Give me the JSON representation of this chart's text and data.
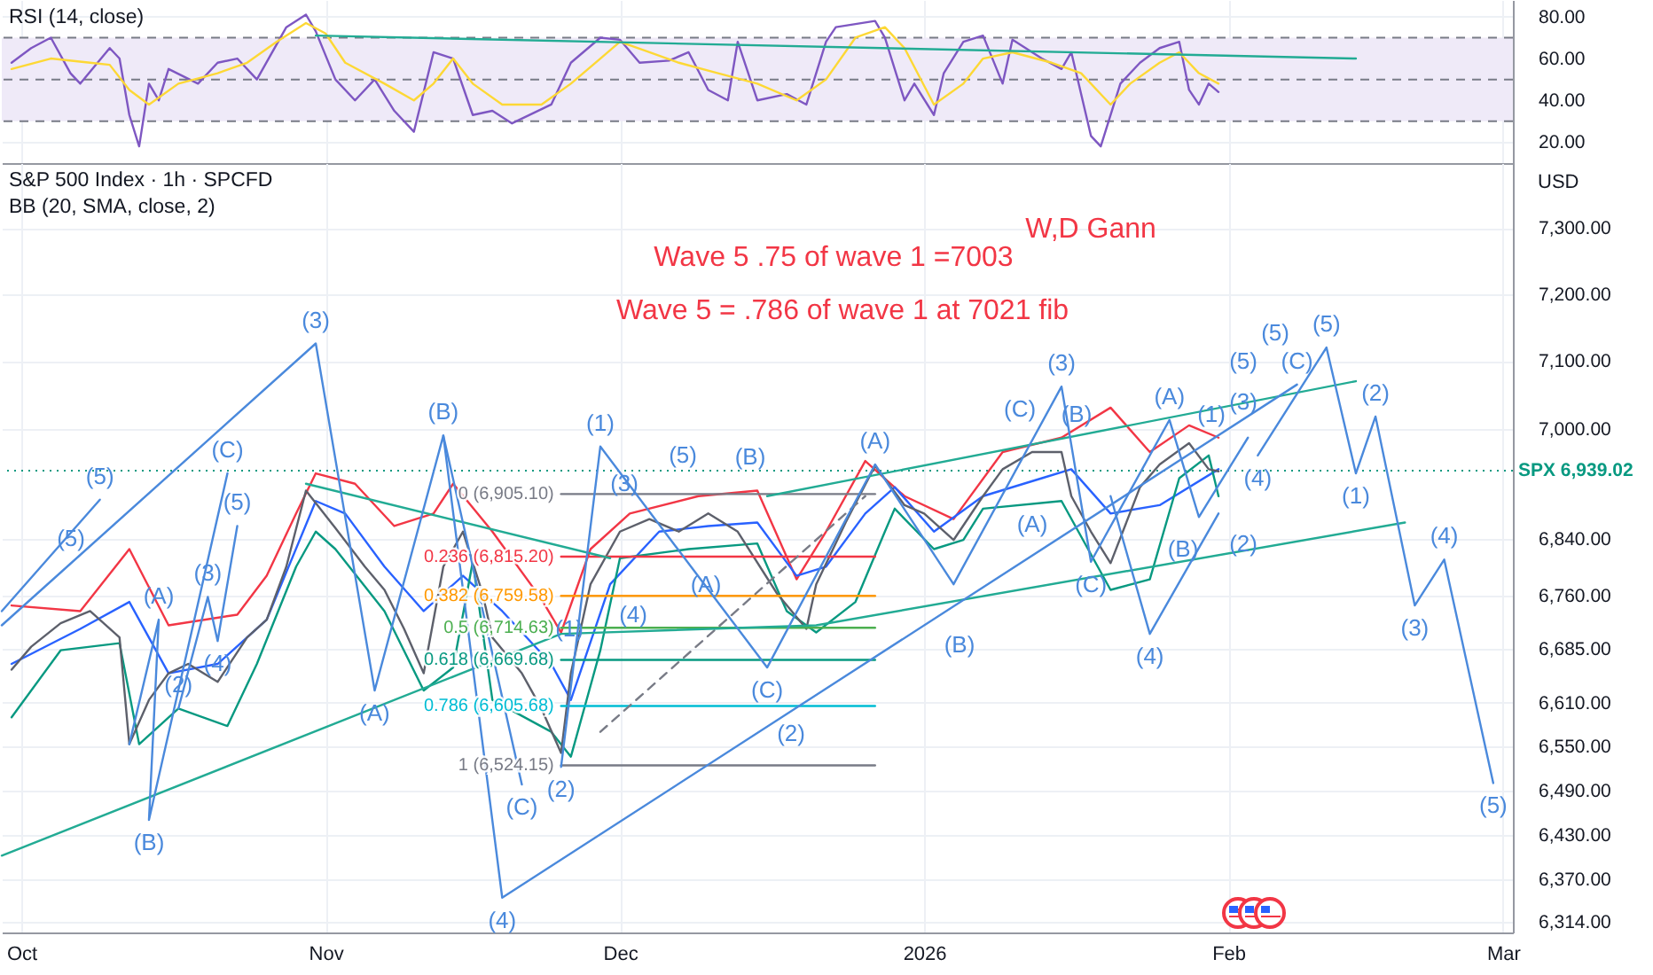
{
  "chart_data": [
    {
      "type": "line",
      "title": "RSI (14, close)",
      "xlim": [
        "2025-09-29",
        "2026-03-02"
      ],
      "ylim": [
        10,
        88
      ],
      "xticks": [
        {
          "value": "2025-10-01",
          "label": null
        },
        {
          "value": "2025-11-01",
          "label": null
        },
        {
          "value": "2025-12-01",
          "label": null
        },
        {
          "value": "2026-01-01",
          "label": null
        },
        {
          "value": "2026-02-01",
          "label": null
        },
        {
          "value": "2026-03-01",
          "label": null
        }
      ],
      "yticks": [
        {
          "value": 20,
          "label": "20.00"
        },
        {
          "value": 40,
          "label": "40.00"
        },
        {
          "value": 60,
          "label": "60.00"
        },
        {
          "value": 80,
          "label": "80.00"
        }
      ],
      "tick_labels": "y",
      "grid": true,
      "bands": [
        {
          "axis": "y",
          "from": 30,
          "to": 70,
          "color": "#efeaf8"
        }
      ],
      "ref_lines": [
        {
          "axis": "y",
          "value": 70,
          "color": "#787b86",
          "line_style": "dashed"
        },
        {
          "axis": "y",
          "value": 50,
          "color": "#787b86",
          "line_style": "dashed"
        },
        {
          "axis": "y",
          "value": 30,
          "color": "#787b86",
          "line_style": "dashed"
        }
      ],
      "series": [
        {
          "color": "#7e57c2",
          "x": [
            "2025-09-30",
            "2025-10-02",
            "2025-10-04",
            "2025-10-06",
            "2025-10-07",
            "2025-10-10",
            "2025-10-11",
            "2025-10-12",
            "2025-10-13",
            "2025-10-14",
            "2025-10-15",
            "2025-10-16",
            "2025-10-19",
            "2025-10-21",
            "2025-10-23",
            "2025-10-25",
            "2025-10-28",
            "2025-10-30",
            "2025-10-31",
            "2025-11-02",
            "2025-11-04",
            "2025-11-06",
            "2025-11-08",
            "2025-11-10",
            "2025-11-12",
            "2025-11-14",
            "2025-11-16",
            "2025-11-18",
            "2025-11-20",
            "2025-11-24",
            "2025-11-26",
            "2025-11-29",
            "2025-12-01",
            "2025-12-03",
            "2025-12-06",
            "2025-12-08",
            "2025-12-10",
            "2025-12-12",
            "2025-12-13",
            "2025-12-15",
            "2025-12-18",
            "2025-12-20",
            "2025-12-22",
            "2025-12-23",
            "2025-12-27",
            "2025-12-28",
            "2025-12-30",
            "2025-12-31",
            "2026-01-02",
            "2026-01-03",
            "2026-01-05",
            "2026-01-07",
            "2026-01-09",
            "2026-01-10",
            "2026-01-13",
            "2026-01-15",
            "2026-01-16",
            "2026-01-18",
            "2026-01-19",
            "2026-01-21",
            "2026-01-23",
            "2026-01-25",
            "2026-01-27",
            "2026-01-28",
            "2026-01-29",
            "2026-01-30",
            "2026-01-31"
          ],
          "values": [
            58,
            65,
            70,
            53,
            48,
            65,
            60,
            33,
            18,
            48,
            40,
            55,
            48,
            58,
            60,
            50,
            75,
            81,
            73,
            50,
            40,
            50,
            35,
            25,
            63,
            60,
            33,
            35,
            29,
            38,
            58,
            70,
            69,
            58,
            59,
            63,
            45,
            40,
            68,
            40,
            43,
            38,
            68,
            75,
            78,
            70,
            40,
            48,
            33,
            53,
            68,
            71,
            48,
            69,
            60,
            55,
            63,
            23,
            18,
            48,
            58,
            65,
            68,
            45,
            38,
            48,
            44
          ]
        },
        {
          "color": "#fdd835",
          "x": [
            "2025-09-30",
            "2025-10-04",
            "2025-10-08",
            "2025-10-10",
            "2025-10-12",
            "2025-10-14",
            "2025-10-17",
            "2025-10-21",
            "2025-10-24",
            "2025-10-27",
            "2025-10-30",
            "2025-11-01",
            "2025-11-03",
            "2025-11-07",
            "2025-11-10",
            "2025-11-12",
            "2025-11-14",
            "2025-11-16",
            "2025-11-19",
            "2025-11-23",
            "2025-11-26",
            "2025-11-29",
            "2025-12-01",
            "2025-12-04",
            "2025-12-07",
            "2025-12-11",
            "2025-12-15",
            "2025-12-19",
            "2025-12-22",
            "2025-12-25",
            "2025-12-28",
            "2025-12-30",
            "2026-01-02",
            "2026-01-05",
            "2026-01-07",
            "2026-01-10",
            "2026-01-14",
            "2026-01-17",
            "2026-01-20",
            "2026-01-22",
            "2026-01-25",
            "2026-01-27",
            "2026-01-29",
            "2026-01-31"
          ],
          "values": [
            55,
            60,
            58,
            57,
            45,
            38,
            48,
            53,
            58,
            68,
            77,
            72,
            58,
            48,
            40,
            48,
            60,
            48,
            38,
            38,
            48,
            60,
            68,
            63,
            58,
            53,
            48,
            40,
            50,
            70,
            75,
            65,
            38,
            48,
            60,
            63,
            58,
            53,
            38,
            48,
            58,
            63,
            53,
            48
          ]
        },
        {
          "color": "#22ab94",
          "x": [
            "2025-10-31",
            "2026-02-14"
          ],
          "values": [
            71,
            60
          ]
        }
      ]
    },
    {
      "type": "line",
      "title": "S&P 500 Index · 1h · SPCFD",
      "subtitle": "BB (20, SMA, close, 2)",
      "ylabel": "USD",
      "log": "y",
      "xlim": [
        "2025-09-29",
        "2026-03-02"
      ],
      "ylim": [
        6300,
        7400
      ],
      "xticks": [
        {
          "value": "2025-10-01",
          "label": "Oct"
        },
        {
          "value": "2025-11-01",
          "label": "Nov"
        },
        {
          "value": "2025-12-01",
          "label": "Dec"
        },
        {
          "value": "2026-01-01",
          "label": "2026"
        },
        {
          "value": "2026-02-01",
          "label": "Feb"
        },
        {
          "value": "2026-03-01",
          "label": "Mar"
        }
      ],
      "yticks": [
        {
          "value": 6314,
          "label": "6,314.00"
        },
        {
          "value": 6370,
          "label": "6,370.00"
        },
        {
          "value": 6430,
          "label": "6,430.00"
        },
        {
          "value": 6490,
          "label": "6,490.00"
        },
        {
          "value": 6550,
          "label": "6,550.00"
        },
        {
          "value": 6610,
          "label": "6,610.00"
        },
        {
          "value": 6685,
          "label": "6,685.00"
        },
        {
          "value": 6760,
          "label": "6,760.00"
        },
        {
          "value": 6840,
          "label": "6,840.00"
        },
        {
          "value": 7000,
          "label": "7,000.00"
        },
        {
          "value": 7100,
          "label": "7,100.00"
        },
        {
          "value": 7200,
          "label": "7,200.00"
        },
        {
          "value": 7300,
          "label": "7,300.00"
        }
      ],
      "grid": true,
      "ref_lines": [
        {
          "axis": "y",
          "value": 6939.02,
          "label": "SPX 6,939.02",
          "color": "#089981",
          "line_style": "dotted"
        }
      ],
      "series": [
        {
          "color": "#f23645",
          "x": [
            "2025-09-30",
            "2025-10-07",
            "2025-10-12",
            "2025-10-16",
            "2025-10-23",
            "2025-10-26",
            "2025-10-29",
            "2025-10-31",
            "2025-11-04",
            "2025-11-08",
            "2025-11-12",
            "2025-11-14",
            "2025-11-18",
            "2025-11-23",
            "2025-11-25",
            "2025-11-28",
            "2025-12-02",
            "2025-12-09",
            "2025-12-15",
            "2025-12-19",
            "2025-12-22",
            "2025-12-26",
            "2025-12-30",
            "2026-01-04",
            "2026-01-09",
            "2026-01-15",
            "2026-01-20",
            "2026-01-24",
            "2026-01-28",
            "2026-01-31"
          ],
          "values": [
            6746,
            6738,
            6826,
            6718,
            6733,
            6788,
            6877,
            6935,
            6920,
            6859,
            6877,
            6920,
            6851,
            6755,
            6708,
            6826,
            6877,
            6902,
            6910,
            6783,
            6851,
            6953,
            6902,
            6869,
            6966,
            6987,
            7031,
            6966,
            7005,
            6987
          ]
        },
        {
          "color": "#2962ff",
          "x": [
            "2025-09-30",
            "2025-10-07",
            "2025-10-12",
            "2025-10-16",
            "2025-10-21",
            "2025-10-26",
            "2025-10-31",
            "2025-11-03",
            "2025-11-07",
            "2025-11-11",
            "2025-11-15",
            "2025-11-19",
            "2025-11-24",
            "2025-11-26",
            "2025-11-30",
            "2025-12-05",
            "2025-12-10",
            "2025-12-15",
            "2025-12-19",
            "2025-12-22",
            "2025-12-26",
            "2025-12-29",
            "2026-01-02",
            "2026-01-07",
            "2026-01-13",
            "2026-01-16",
            "2026-01-20",
            "2026-01-25",
            "2026-01-31"
          ],
          "values": [
            6664,
            6713,
            6751,
            6651,
            6664,
            6726,
            6895,
            6877,
            6801,
            6738,
            6788,
            6738,
            6664,
            6614,
            6776,
            6851,
            6859,
            6864,
            6788,
            6801,
            6877,
            6915,
            6851,
            6902,
            6928,
            6941,
            6877,
            6889,
            6941
          ]
        },
        {
          "color": "#089981",
          "x": [
            "2025-09-30",
            "2025-10-05",
            "2025-10-11",
            "2025-10-13",
            "2025-10-17",
            "2025-10-22",
            "2025-10-25",
            "2025-10-29",
            "2025-10-31",
            "2025-11-02",
            "2025-11-07",
            "2025-11-11",
            "2025-11-14",
            "2025-11-16",
            "2025-11-18",
            "2025-11-24",
            "2025-11-26",
            "2025-11-29",
            "2025-12-01",
            "2025-12-08",
            "2025-12-15",
            "2025-12-18",
            "2025-12-21",
            "2025-12-25",
            "2025-12-28",
            "2025-12-29",
            "2026-01-02",
            "2026-01-05",
            "2026-01-07",
            "2026-01-15",
            "2026-01-20",
            "2026-01-24",
            "2026-01-27",
            "2026-01-30",
            "2026-01-31"
          ],
          "values": [
            6590,
            6683,
            6693,
            6553,
            6602,
            6578,
            6664,
            6801,
            6851,
            6826,
            6738,
            6627,
            6659,
            6808,
            6614,
            6570,
            6536,
            6683,
            6813,
            6826,
            6834,
            6738,
            6708,
            6751,
            6851,
            6884,
            6826,
            6839,
            6884,
            6895,
            6768,
            6783,
            6928,
            6961,
            6902
          ]
        },
        {
          "color": "#5d606b",
          "x": [
            "2025-09-30",
            "2025-10-02",
            "2025-10-05",
            "2025-10-08",
            "2025-10-11",
            "2025-10-12",
            "2025-10-14",
            "2025-10-16",
            "2025-10-18",
            "2025-10-21",
            "2025-10-24",
            "2025-10-26",
            "2025-10-28",
            "2025-10-30",
            "2025-11-02",
            "2025-11-05",
            "2025-11-07",
            "2025-11-09",
            "2025-11-11",
            "2025-11-13",
            "2025-11-15",
            "2025-11-17",
            "2025-11-18",
            "2025-11-21",
            "2025-11-23",
            "2025-11-25",
            "2025-11-26",
            "2025-11-28",
            "2025-12-01",
            "2025-12-04",
            "2025-12-07",
            "2025-12-10",
            "2025-12-13",
            "2025-12-17",
            "2025-12-20",
            "2025-12-21",
            "2025-12-24",
            "2025-12-27",
            "2025-12-30",
            "2026-01-01",
            "2026-01-04",
            "2026-01-07",
            "2026-01-09",
            "2026-01-12",
            "2026-01-15",
            "2026-01-16",
            "2026-01-18",
            "2026-01-20",
            "2026-01-23",
            "2026-01-25",
            "2026-01-28",
            "2026-01-30",
            "2026-01-31"
          ],
          "values": [
            6656,
            6688,
            6721,
            6738,
            6701,
            6553,
            6614,
            6651,
            6664,
            6639,
            6701,
            6726,
            6801,
            6910,
            6856,
            6801,
            6768,
            6713,
            6651,
            6801,
            6851,
            6763,
            6701,
            6651,
            6602,
            6541,
            6651,
            6776,
            6851,
            6869,
            6851,
            6877,
            6851,
            6763,
            6713,
            6776,
            6864,
            6946,
            6889,
            6877,
            6839,
            6902,
            6941,
            6966,
            6966,
            6902,
            6851,
            6806,
            6915,
            6948,
            6979,
            6941,
            6938
          ]
        },
        {
          "name": "0 (6,905.10)",
          "color": "#787b86",
          "x": [
            "2025-11-25",
            "2025-12-27"
          ],
          "values": [
            6905.1,
            6905.1
          ]
        },
        {
          "name": "0.236 (6,815.20)",
          "color": "#f23645",
          "x": [
            "2025-11-25",
            "2025-12-27"
          ],
          "values": [
            6815.2,
            6815.2
          ]
        },
        {
          "name": "0.382 (6,759.58)",
          "color": "#ff9800",
          "x": [
            "2025-11-25",
            "2025-12-27"
          ],
          "values": [
            6759.58,
            6759.58
          ]
        },
        {
          "name": "0.5 (6,714.63)",
          "color": "#4caf50",
          "x": [
            "2025-11-25",
            "2025-12-27"
          ],
          "values": [
            6714.63,
            6714.63
          ]
        },
        {
          "name": "0.618 (6,669.68)",
          "color": "#089981",
          "x": [
            "2025-11-25",
            "2025-12-27"
          ],
          "values": [
            6669.68,
            6669.68
          ]
        },
        {
          "name": "0.786 (6,605.68)",
          "color": "#00bcd4",
          "x": [
            "2025-11-25",
            "2025-12-27"
          ],
          "values": [
            6605.68,
            6605.68
          ]
        },
        {
          "name": "1 (6,524.15)",
          "color": "#787b86",
          "x": [
            "2025-11-25",
            "2025-12-27"
          ],
          "values": [
            6524.15,
            6524.15
          ]
        },
        {
          "color": "#787b86",
          "line_style": "dashed",
          "x": [
            "2025-11-29",
            "2025-12-26"
          ],
          "values": [
            6570,
            6902
          ]
        },
        {
          "color": "#22ab94",
          "x": [
            "2025-09-29",
            "2025-11-25",
            "2025-12-21",
            "2026-02-19"
          ],
          "values": [
            6402,
            6706,
            6718,
            6864
          ]
        },
        {
          "color": "#22ab94",
          "x": [
            "2025-10-30",
            "2025-11-30"
          ],
          "values": [
            6920,
            6813
          ]
        },
        {
          "color": "#22ab94",
          "x": [
            "2025-12-16",
            "2026-02-14"
          ],
          "values": [
            6902,
            7070
          ]
        },
        {
          "color": "#4a89dc",
          "x": [
            "2025-09-29",
            "2025-10-31",
            "2025-11-06",
            "2025-11-13",
            "2025-11-19",
            "2026-02-08"
          ],
          "values": [
            6718,
            7126,
            6627,
            6990,
            6346,
            7065
          ]
        },
        {
          "color": "#4a89dc",
          "x": [
            "2026-02-04",
            "2026-02-11",
            "2026-02-14",
            "2026-02-16",
            "2026-02-20",
            "2026-02-23",
            "2026-02-28"
          ],
          "values": [
            6961,
            7120,
            6935,
            7018,
            6746,
            6811,
            6500
          ]
        },
        {
          "color": "#4a89dc",
          "x": [
            "2025-09-29",
            "2025-10-09"
          ],
          "values": [
            6738,
            6897
          ]
        },
        {
          "color": "#4a89dc",
          "x": [
            "2025-10-12",
            "2025-10-15",
            "2025-10-14",
            "2025-10-22"
          ],
          "values": [
            6553,
            6726,
            6450,
            6935
          ]
        },
        {
          "color": "#4a89dc",
          "x": [
            "2025-10-17",
            "2025-10-20",
            "2025-10-21",
            "2025-10-23"
          ],
          "values": [
            6602,
            6758,
            6696,
            6859
          ]
        },
        {
          "color": "#4a89dc",
          "x": [
            "2025-11-25",
            "2025-11-29",
            "2025-12-16",
            "2025-12-27",
            "2026-01-04",
            "2026-01-15",
            "2026-01-18",
            "2026-01-26",
            "2026-01-29",
            "2026-02-03"
          ],
          "values": [
            6522,
            6974,
            6659,
            6948,
            6776,
            7062,
            6808,
            7013,
            6872,
            6987
          ]
        },
        {
          "color": "#4a89dc",
          "x": [
            "2026-01-20",
            "2026-01-24",
            "2026-01-31"
          ],
          "values": [
            6902,
            6706,
            6877
          ]
        },
        {
          "color": "#4a89dc",
          "x": [
            "2025-11-13",
            "2025-11-21"
          ],
          "values": [
            6990,
            6498
          ]
        }
      ],
      "annotations": [
        "W,D Gann",
        "Wave 5 .75 of wave 1  =7003",
        "Wave 5 = .786 of wave 1 at  7021   fib",
        "(5)",
        "(1)",
        "(3)",
        "(5)",
        "(B)",
        "(A)",
        "(4)",
        "(2)",
        "(C)",
        "(B)",
        "(A)",
        "(1)",
        "(3)",
        "(5)",
        "(5)",
        "(2)",
        "(B)",
        "(B)",
        {
          "text": "(5)",
          "x": "2025-10-09",
          "y": 6897
        },
        {
          "text": "(3)",
          "x": "2025-10-31",
          "y": 7126
        },
        {
          "text": "(C)",
          "x": "2025-10-22",
          "y": 6935
        },
        {
          "text": "(5)",
          "x": "2025-10-23",
          "y": 6859
        },
        {
          "text": "(3)",
          "x": "2025-10-20",
          "y": 6758
        },
        {
          "text": "(A)",
          "x": "2025-10-15",
          "y": 6726
        },
        {
          "text": "(4)",
          "x": "2025-10-21",
          "y": 6696
        },
        {
          "text": "(2)",
          "x": "2025-10-17",
          "y": 6602
        },
        {
          "text": "(B)",
          "x": "2025-10-14",
          "y": 6450
        },
        {
          "text": "(B)",
          "x": "2025-11-13",
          "y": 6990
        },
        {
          "text": "(A)",
          "x": "2025-11-06",
          "y": 6627
        },
        {
          "text": "(C)",
          "x": "2025-11-21",
          "y": 6498
        },
        {
          "text": "(4)",
          "x": "2025-11-19",
          "y": 6346
        },
        {
          "text": "(2)",
          "x": "2025-11-25",
          "y": 6522
        },
        {
          "text": "(1)",
          "x": "2025-11-29",
          "y": 6974
        },
        {
          "text": "(C)",
          "x": "2025-12-16",
          "y": 6659
        },
        {
          "text": "(A)",
          "x": "2025-12-27",
          "y": 6948
        },
        {
          "text": "(3)",
          "x": "2026-01-15",
          "y": 7062
        },
        {
          "text": "(C)",
          "x": "2026-01-18",
          "y": 6808
        },
        {
          "text": "(A)",
          "x": "2026-01-26",
          "y": 7013
        },
        {
          "text": "(C)",
          "x": "2026-02-08",
          "y": 7065
        },
        {
          "text": "(4)",
          "x": "2026-02-04",
          "y": 6961
        },
        {
          "text": "(4)",
          "x": "2026-01-24",
          "y": 6706
        },
        {
          "text": "(5)",
          "x": "2026-02-11",
          "y": 7120
        },
        {
          "text": "(2)",
          "x": "2026-02-16",
          "y": 7018
        },
        {
          "text": "(1)",
          "x": "2026-02-14",
          "y": 6935
        },
        {
          "text": "(4)",
          "x": "2026-02-23",
          "y": 6811
        },
        {
          "text": "(3)",
          "x": "2026-02-20",
          "y": 6746
        },
        {
          "text": "(5)",
          "x": "2026-02-28",
          "y": 6500
        }
      ]
    }
  ]
}
